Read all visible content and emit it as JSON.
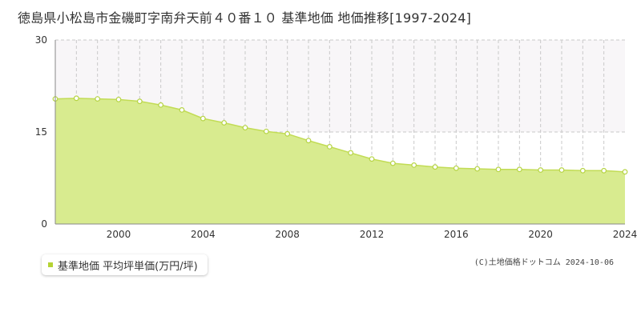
{
  "title": "徳島県小松島市金磯町字南弁天前４０番１０ 基準地価 地価推移[1997-2024]",
  "legend": {
    "label": "基準地価 平均坪単価(万円/坪)"
  },
  "copyright": "(C)土地価格ドットコム 2024-10-06",
  "colors": {
    "area_fill": "#d8eb8f",
    "line": "#c2dc55",
    "marker_fill": "#ffffff",
    "marker_stroke": "#b6d444",
    "grid": "#c9c9c9",
    "upper_band": "#f8f6f8",
    "axis": "#888888",
    "legend_swatch": "#b5d334"
  },
  "chart_data": {
    "type": "area",
    "title": "徳島県小松島市金磯町字南弁天前４０番１０ 基準地価 地価推移[1997-2024]",
    "xlabel": "",
    "ylabel": "",
    "x": [
      1997,
      1998,
      1999,
      2000,
      2001,
      2002,
      2003,
      2004,
      2005,
      2006,
      2007,
      2008,
      2009,
      2010,
      2011,
      2012,
      2013,
      2014,
      2015,
      2016,
      2017,
      2018,
      2019,
      2020,
      2021,
      2022,
      2023,
      2024
    ],
    "series": [
      {
        "name": "基準地価 平均坪単価(万円/坪)",
        "values": [
          20.4,
          20.5,
          20.4,
          20.3,
          20.0,
          19.4,
          18.6,
          17.2,
          16.5,
          15.7,
          15.1,
          14.7,
          13.6,
          12.6,
          11.6,
          10.6,
          9.9,
          9.6,
          9.3,
          9.1,
          9.0,
          8.9,
          8.9,
          8.8,
          8.8,
          8.7,
          8.7,
          8.5
        ]
      }
    ],
    "xlim": [
      1997,
      2024
    ],
    "ylim": [
      0,
      30
    ],
    "x_ticks": [
      "2000",
      "2004",
      "2008",
      "2012",
      "2016",
      "2020",
      "2024"
    ],
    "y_ticks": [
      "0",
      "15",
      "30"
    ],
    "grid": true,
    "legend_position": "bottom-left"
  }
}
